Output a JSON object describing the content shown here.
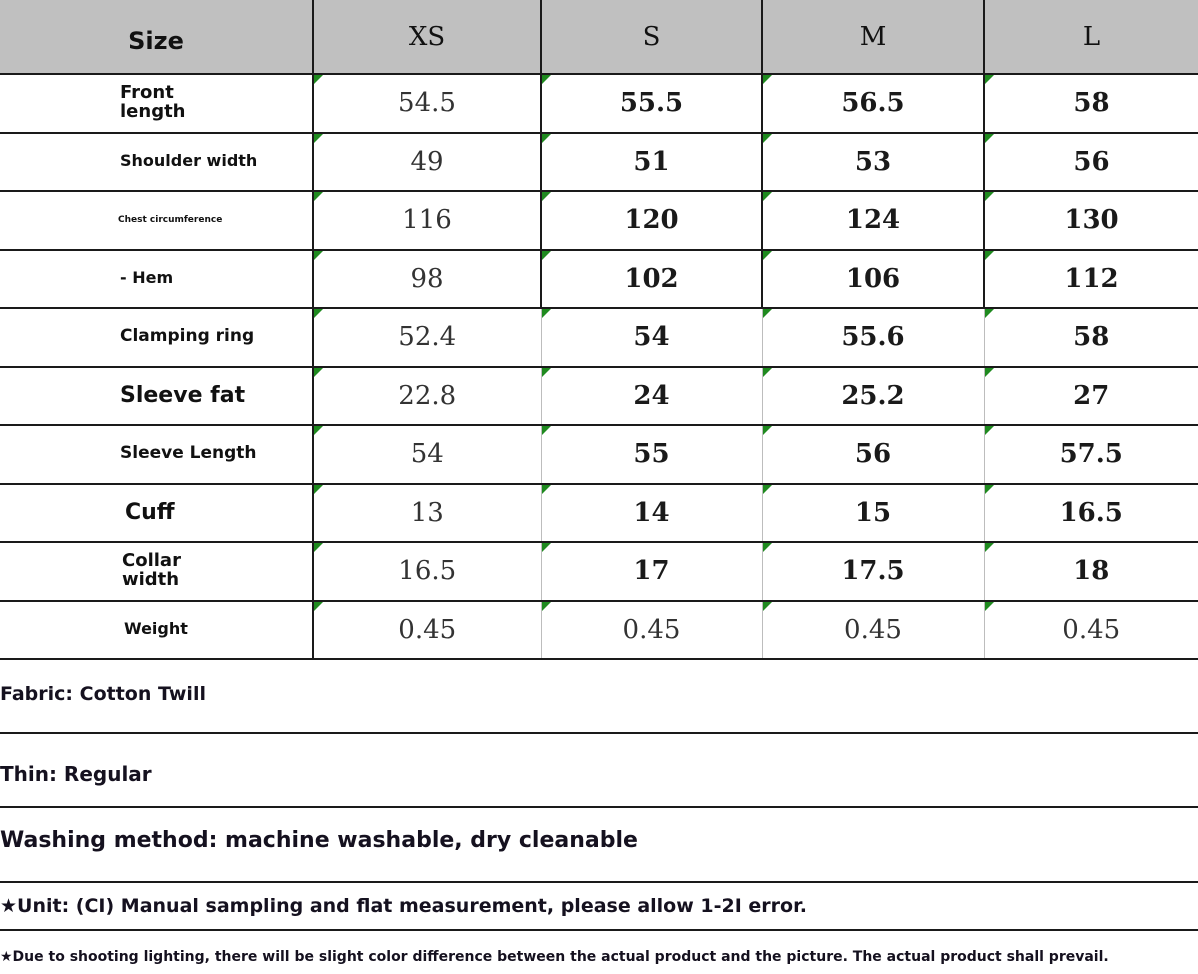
{
  "table": {
    "headers": [
      "Size",
      "XS",
      "S",
      "M",
      "L"
    ],
    "rows": [
      {
        "label": "Front length",
        "values": [
          "54.5",
          "55.5",
          "56.5",
          "58"
        ]
      },
      {
        "label": "Shoulder width",
        "values": [
          "49",
          "51",
          "53",
          "56"
        ]
      },
      {
        "label": "Chest circumference",
        "values": [
          "116",
          "120",
          "124",
          "130"
        ]
      },
      {
        "label": "- Hem",
        "values": [
          "98",
          "102",
          "106",
          "112"
        ]
      },
      {
        "label": "Clamping ring",
        "values": [
          "52.4",
          "54",
          "55.6",
          "58"
        ]
      },
      {
        "label": "Sleeve fat",
        "values": [
          "22.8",
          "24",
          "25.2",
          "27"
        ]
      },
      {
        "label": "Sleeve Length",
        "values": [
          "54",
          "55",
          "56",
          "57.5"
        ]
      },
      {
        "label": "Cuff",
        "values": [
          "13",
          "14",
          "15",
          "16.5"
        ]
      },
      {
        "label": "Collar width",
        "values": [
          "16.5",
          "17",
          "17.5",
          "18"
        ]
      },
      {
        "label": "Weight",
        "values": [
          "0.45",
          "0.45",
          "0.45",
          "0.45"
        ]
      }
    ]
  },
  "notes": {
    "fabric": "Fabric: Cotton Twill",
    "thin": "Thin: Regular",
    "washing": "Washing method: machine washable, dry cleanable",
    "unit": "★Unit: (CI) Manual sampling and flat measurement, please allow 1-2I error.",
    "lighting": "★Due to shooting lighting, there will be slight color difference between the actual product and the picture. The actual product shall prevail."
  },
  "colors": {
    "header_bg": "#c0c0c0",
    "corner_marker": "#1f8a1f",
    "note_text": "#15111f"
  }
}
